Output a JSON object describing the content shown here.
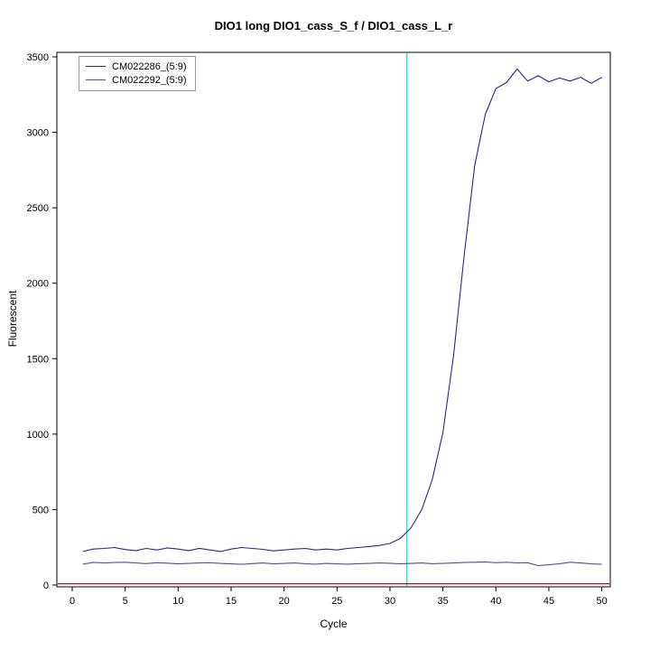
{
  "chart_data": {
    "type": "line",
    "title": "DIO1 long DIO1_cass_S_f / DIO1_cass_L_r",
    "xlabel": "Cycle",
    "ylabel": "Fluorescent",
    "x_ticks": [
      0,
      5,
      10,
      15,
      20,
      25,
      30,
      35,
      40,
      45,
      50
    ],
    "y_ticks": [
      0,
      500,
      1000,
      1500,
      2000,
      2500,
      3000,
      3500
    ],
    "xlim": [
      -1.45,
      50.8
    ],
    "ylim": [
      -12,
      3530
    ],
    "grid": false,
    "legend_position": "top-left",
    "x": [
      1,
      2,
      3,
      4,
      5,
      6,
      7,
      8,
      9,
      10,
      11,
      12,
      13,
      14,
      15,
      16,
      17,
      18,
      19,
      20,
      21,
      22,
      23,
      24,
      25,
      26,
      27,
      28,
      29,
      30,
      31,
      32,
      33,
      34,
      35,
      36,
      37,
      38,
      39,
      40,
      41,
      42,
      43,
      44,
      45,
      46,
      47,
      48,
      49,
      50
    ],
    "series": [
      {
        "name": "CM022286_(5:9)",
        "color": "#28288c",
        "values": [
          222,
          238,
          242,
          248,
          235,
          228,
          242,
          232,
          246,
          238,
          228,
          243,
          232,
          222,
          238,
          248,
          242,
          236,
          226,
          232,
          238,
          242,
          232,
          238,
          232,
          242,
          248,
          255,
          262,
          275,
          310,
          380,
          500,
          700,
          1010,
          1520,
          2180,
          2780,
          3120,
          3290,
          3330,
          3420,
          3340,
          3375,
          3335,
          3360,
          3340,
          3365,
          3325,
          3365
        ]
      },
      {
        "name": "CM022292_(5:9)",
        "color": "#5050a5",
        "values": [
          138,
          150,
          146,
          149,
          151,
          146,
          142,
          148,
          145,
          140,
          143,
          146,
          148,
          143,
          140,
          137,
          142,
          146,
          140,
          143,
          146,
          141,
          138,
          143,
          140,
          138,
          141,
          143,
          146,
          144,
          140,
          143,
          146,
          141,
          143,
          146,
          149,
          151,
          153,
          148,
          151,
          146,
          148,
          128,
          134,
          141,
          151,
          146,
          140,
          137
        ]
      }
    ],
    "ct_line": {
      "x": 31.6,
      "color": "#00dcdc"
    },
    "baseline": {
      "y": 8,
      "color": "#8b1c1c"
    }
  }
}
